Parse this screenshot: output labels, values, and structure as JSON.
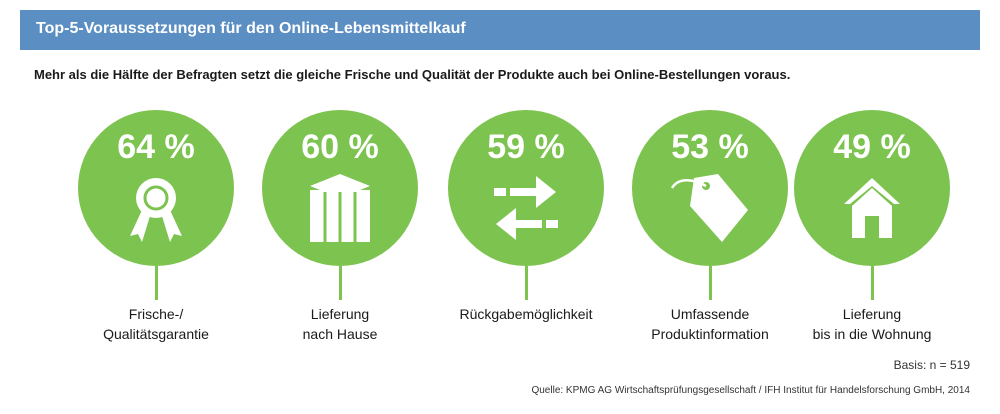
{
  "header": {
    "title": "Top-5-Voraussetzungen für den Online-Lebensmittelkauf"
  },
  "subtitle": "Mehr als die Hälfte der Befragten setzt die gleiche Frische und Qualität der Produkte auch bei Online-Bestellungen voraus.",
  "colors": {
    "header": "#5b8ec3",
    "accent": "#7dc34f"
  },
  "chart_data": {
    "type": "bar",
    "unit": "%",
    "categories": [
      "Frische-/ Qualitätsgarantie",
      "Lieferung nach Hause",
      "Rückgabemöglichkeit",
      "Umfassende Produktinformation",
      "Lieferung bis in die Wohnung"
    ],
    "values": [
      64,
      60,
      59,
      53,
      49
    ],
    "items": [
      {
        "pct": "64 %",
        "label_lines": [
          "Frische-/",
          "Qualitätsgarantie"
        ],
        "icon": "award-ribbon-icon"
      },
      {
        "pct": "60 %",
        "label_lines": [
          "Lieferung",
          "nach Hause"
        ],
        "icon": "package-box-icon"
      },
      {
        "pct": "59 %",
        "label_lines": [
          "Rückgabemöglichkeit",
          ""
        ],
        "icon": "exchange-arrows-icon"
      },
      {
        "pct": "53 %",
        "label_lines": [
          "Umfassende",
          "Produktinformation"
        ],
        "icon": "price-tag-icon"
      },
      {
        "pct": "49 %",
        "label_lines": [
          "Lieferung",
          "bis in die Wohnung"
        ],
        "icon": "house-icon"
      }
    ]
  },
  "footer": {
    "basis": "Basis: n = 519",
    "source": "Quelle: KPMG AG Wirtschaftsprüfungsgesellschaft / IFH Institut für Handelsforschung GmbH, 2014"
  }
}
